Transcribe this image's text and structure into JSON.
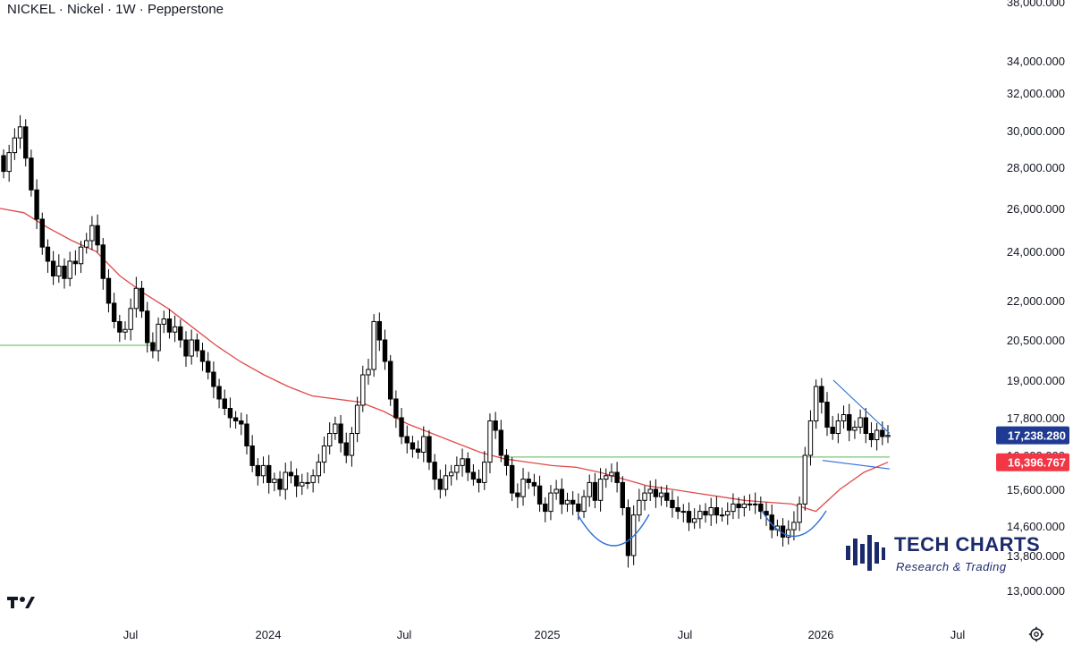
{
  "header": {
    "title": "NICKEL · Nickel · 1W · Pepperstone"
  },
  "brand": {
    "name": "TECH CHARTS",
    "tagline": "Research & Trading"
  },
  "colors": {
    "up_candle": "#ffffff",
    "down_candle": "#000000",
    "moving_average": "#e04a4a",
    "horizontal_line": "#7cc47c",
    "pattern_line": "#2f6fd6",
    "last_price_tag": "#1f3a93",
    "ma_tag": "#f23645",
    "brand": "#1b2a6b"
  },
  "icons": {
    "tradingview_logo": "tradingview-logo-icon",
    "settings": "gear-icon",
    "brand_mark": "equalizer-bars-icon"
  },
  "chart_data": {
    "type": "candlestick",
    "symbol": "NICKEL",
    "timeframe": "1W",
    "y_axis": {
      "scale": "log",
      "ticks": [
        {
          "label": "38,000.000",
          "value": 38000
        },
        {
          "label": "34,000.000",
          "value": 34000
        },
        {
          "label": "32,000.000",
          "value": 32000
        },
        {
          "label": "30,000.000",
          "value": 30000
        },
        {
          "label": "28,000.000",
          "value": 28000
        },
        {
          "label": "26,000.000",
          "value": 26000
        },
        {
          "label": "24,000.000",
          "value": 24000
        },
        {
          "label": "22,000.000",
          "value": 22000
        },
        {
          "label": "20,500.000",
          "value": 20500
        },
        {
          "label": "19,000.000",
          "value": 19000
        },
        {
          "label": "17,800.000",
          "value": 17800
        },
        {
          "label": "16,600.000",
          "value": 16600
        },
        {
          "label": "15,600.000",
          "value": 15600
        },
        {
          "label": "14,600.000",
          "value": 14600
        },
        {
          "label": "13,800.000",
          "value": 13800
        },
        {
          "label": "13,000.000",
          "value": 13000
        }
      ]
    },
    "x_axis": {
      "ticks": [
        {
          "label": "Jul",
          "date": "2023-07-01"
        },
        {
          "label": "2024",
          "date": "2024-01-01"
        },
        {
          "label": "Jul",
          "date": "2024-07-01"
        },
        {
          "label": "2025",
          "date": "2025-01-01"
        },
        {
          "label": "Jul",
          "date": "2025-07-01"
        },
        {
          "label": "2026",
          "date": "2026-01-01"
        },
        {
          "label": "Jul",
          "date": "2026-07-01"
        }
      ]
    },
    "price_tags": [
      {
        "label": "17,238.280",
        "value": 17238.28,
        "kind": "last_price"
      },
      {
        "label": "16,396.767",
        "value": 16396.767,
        "kind": "moving_average"
      }
    ],
    "candles_close": [
      27800,
      28800,
      29600,
      30200,
      28500,
      26900,
      25500,
      24200,
      23600,
      23000,
      23400,
      22900,
      23600,
      23500,
      24200,
      24500,
      25200,
      24300,
      22900,
      21900,
      21200,
      20800,
      20900,
      21700,
      22500,
      21600,
      20400,
      20100,
      21100,
      21300,
      20800,
      21000,
      20500,
      19900,
      20500,
      20100,
      19700,
      19300,
      18800,
      18400,
      18100,
      17800,
      17700,
      17600,
      16900,
      16300,
      16000,
      16300,
      15800,
      15900,
      15600,
      16100,
      16000,
      15700,
      15800,
      15800,
      16000,
      16400,
      16900,
      17300,
      17600,
      17000,
      16600,
      17300,
      18200,
      19200,
      19400,
      21200,
      20500,
      19700,
      18400,
      17800,
      17200,
      17000,
      16800,
      16700,
      17200,
      16400,
      15900,
      15600,
      16000,
      16100,
      16300,
      16500,
      16100,
      15900,
      15800,
      16400,
      17700,
      17400,
      16600,
      16300,
      15500,
      15400,
      15900,
      15800,
      15700,
      15200,
      15000,
      15500,
      15600,
      15200,
      15300,
      15200,
      15000,
      15400,
      15800,
      15300,
      15900,
      16000,
      16100,
      15800,
      15100,
      13800,
      14900,
      15300,
      15500,
      15600,
      15400,
      15500,
      15300,
      15100,
      15000,
      15000,
      14700,
      14800,
      15000,
      14900,
      15100,
      14900,
      14900,
      15000,
      15200,
      15100,
      15200,
      15200,
      15200,
      15000,
      14900,
      14500,
      14600,
      14300,
      14500,
      14700,
      15200,
      16600,
      17700,
      18800,
      18300,
      17500,
      17300,
      17700,
      17900,
      17400,
      17500,
      17800,
      17300,
      17100,
      17400,
      17200,
      17238.28
    ],
    "moving_average_close": [
      26000,
      25800,
      25100,
      24500,
      24000,
      23000,
      22300,
      21700,
      21000,
      20300,
      19700,
      19200,
      18800,
      18500,
      18400,
      18300,
      18000,
      17600,
      17300,
      17000,
      16700,
      16500,
      16400,
      16300,
      16250,
      16100,
      15900,
      15700,
      15600,
      15500,
      15400,
      15300,
      15250,
      15200,
      15000,
      15600,
      16100,
      16396.767
    ],
    "annotations": {
      "resistance_line_1": 20300,
      "neckline": 16550,
      "triangle_upper": [
        19000,
        17300
      ],
      "triangle_lower": [
        16450,
        16200
      ]
    }
  }
}
